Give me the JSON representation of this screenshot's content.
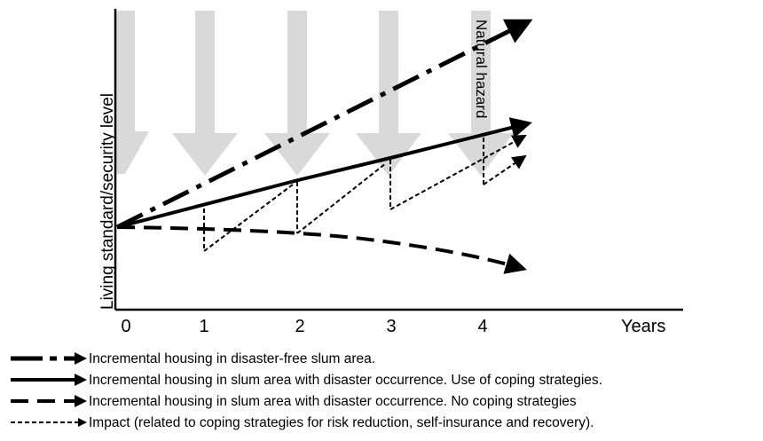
{
  "diagram": {
    "y_axis_label": "Living standard/security level",
    "x_axis_label": "Years",
    "x_ticks": [
      "0",
      "1",
      "2",
      "3",
      "4"
    ],
    "hazard_label": "Natural hazard",
    "colors": {
      "hazard_arrow": "#d9d9d9",
      "lines": "#000000"
    }
  },
  "legend": {
    "items": [
      {
        "style": "dash-dot",
        "label": "Incremental housing in disaster-free slum area."
      },
      {
        "style": "solid",
        "label": "Incremental housing in slum area with disaster occurrence. Use of coping strategies."
      },
      {
        "style": "dashed",
        "label": "Incremental housing in slum area with disaster occurrence. No coping strategies"
      },
      {
        "style": "dotted",
        "label": "Impact (related to coping strategies for risk reduction, self-insurance and recovery)."
      }
    ]
  }
}
